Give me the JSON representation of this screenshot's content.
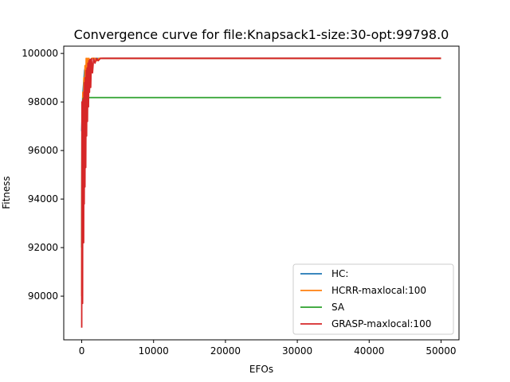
{
  "chart_data": {
    "type": "line",
    "title": "Convergence curve for file:Knapsack1-size:30-opt:99798.0",
    "xlabel": "EFOs",
    "ylabel": "Fitness",
    "xlim": [
      -2500,
      52500
    ],
    "ylim": [
      88200,
      100300
    ],
    "xticks": [
      0,
      10000,
      20000,
      30000,
      40000,
      50000
    ],
    "yticks": [
      90000,
      92000,
      94000,
      96000,
      98000,
      100000
    ],
    "grid": false,
    "legend_position": "lower-right",
    "series": [
      {
        "name": "HC:",
        "color": "#1f77b4",
        "points": [
          [
            0,
            96800
          ],
          [
            150,
            98300
          ],
          [
            400,
            99300
          ],
          [
            800,
            99700
          ],
          [
            1500,
            99790
          ],
          [
            3000,
            99798
          ],
          [
            50000,
            99798
          ]
        ]
      },
      {
        "name": "HCRR-maxlocal:100",
        "color": "#ff7f0e",
        "points": [
          [
            0,
            90000
          ],
          [
            50,
            97500
          ],
          [
            100,
            91500
          ],
          [
            150,
            98400
          ],
          [
            220,
            95200
          ],
          [
            300,
            99000
          ],
          [
            380,
            96800
          ],
          [
            460,
            99500
          ],
          [
            540,
            98200
          ],
          [
            620,
            99798
          ],
          [
            700,
            98900
          ],
          [
            800,
            99798
          ],
          [
            900,
            99300
          ],
          [
            1000,
            99798
          ],
          [
            1200,
            99600
          ],
          [
            1400,
            99798
          ],
          [
            1800,
            99798
          ],
          [
            2100,
            99700
          ],
          [
            2400,
            99798
          ],
          [
            50000,
            99798
          ]
        ]
      },
      {
        "name": "SA",
        "color": "#2ca02c",
        "points": [
          [
            0,
            92000
          ],
          [
            40,
            97500
          ],
          [
            100,
            98000
          ],
          [
            200,
            98150
          ],
          [
            300,
            98180
          ],
          [
            50000,
            98180
          ]
        ]
      },
      {
        "name": "GRASP-maxlocal:100",
        "color": "#d62728",
        "points": [
          [
            0,
            88700
          ],
          [
            30,
            98000
          ],
          [
            60,
            90500
          ],
          [
            90,
            97000
          ],
          [
            120,
            89700
          ],
          [
            150,
            98100
          ],
          [
            190,
            93000
          ],
          [
            230,
            97600
          ],
          [
            270,
            92200
          ],
          [
            310,
            98400
          ],
          [
            350,
            93800
          ],
          [
            400,
            98800
          ],
          [
            450,
            94500
          ],
          [
            500,
            99000
          ],
          [
            560,
            95300
          ],
          [
            620,
            99300
          ],
          [
            680,
            96600
          ],
          [
            740,
            99400
          ],
          [
            800,
            97200
          ],
          [
            870,
            99600
          ],
          [
            940,
            97800
          ],
          [
            1010,
            99700
          ],
          [
            1080,
            98400
          ],
          [
            1160,
            99750
          ],
          [
            1250,
            98600
          ],
          [
            1350,
            99780
          ],
          [
            1500,
            99200
          ],
          [
            1650,
            99790
          ],
          [
            1850,
            99600
          ],
          [
            2050,
            99798
          ],
          [
            2300,
            99700
          ],
          [
            2600,
            99798
          ],
          [
            50000,
            99798
          ]
        ]
      }
    ]
  }
}
